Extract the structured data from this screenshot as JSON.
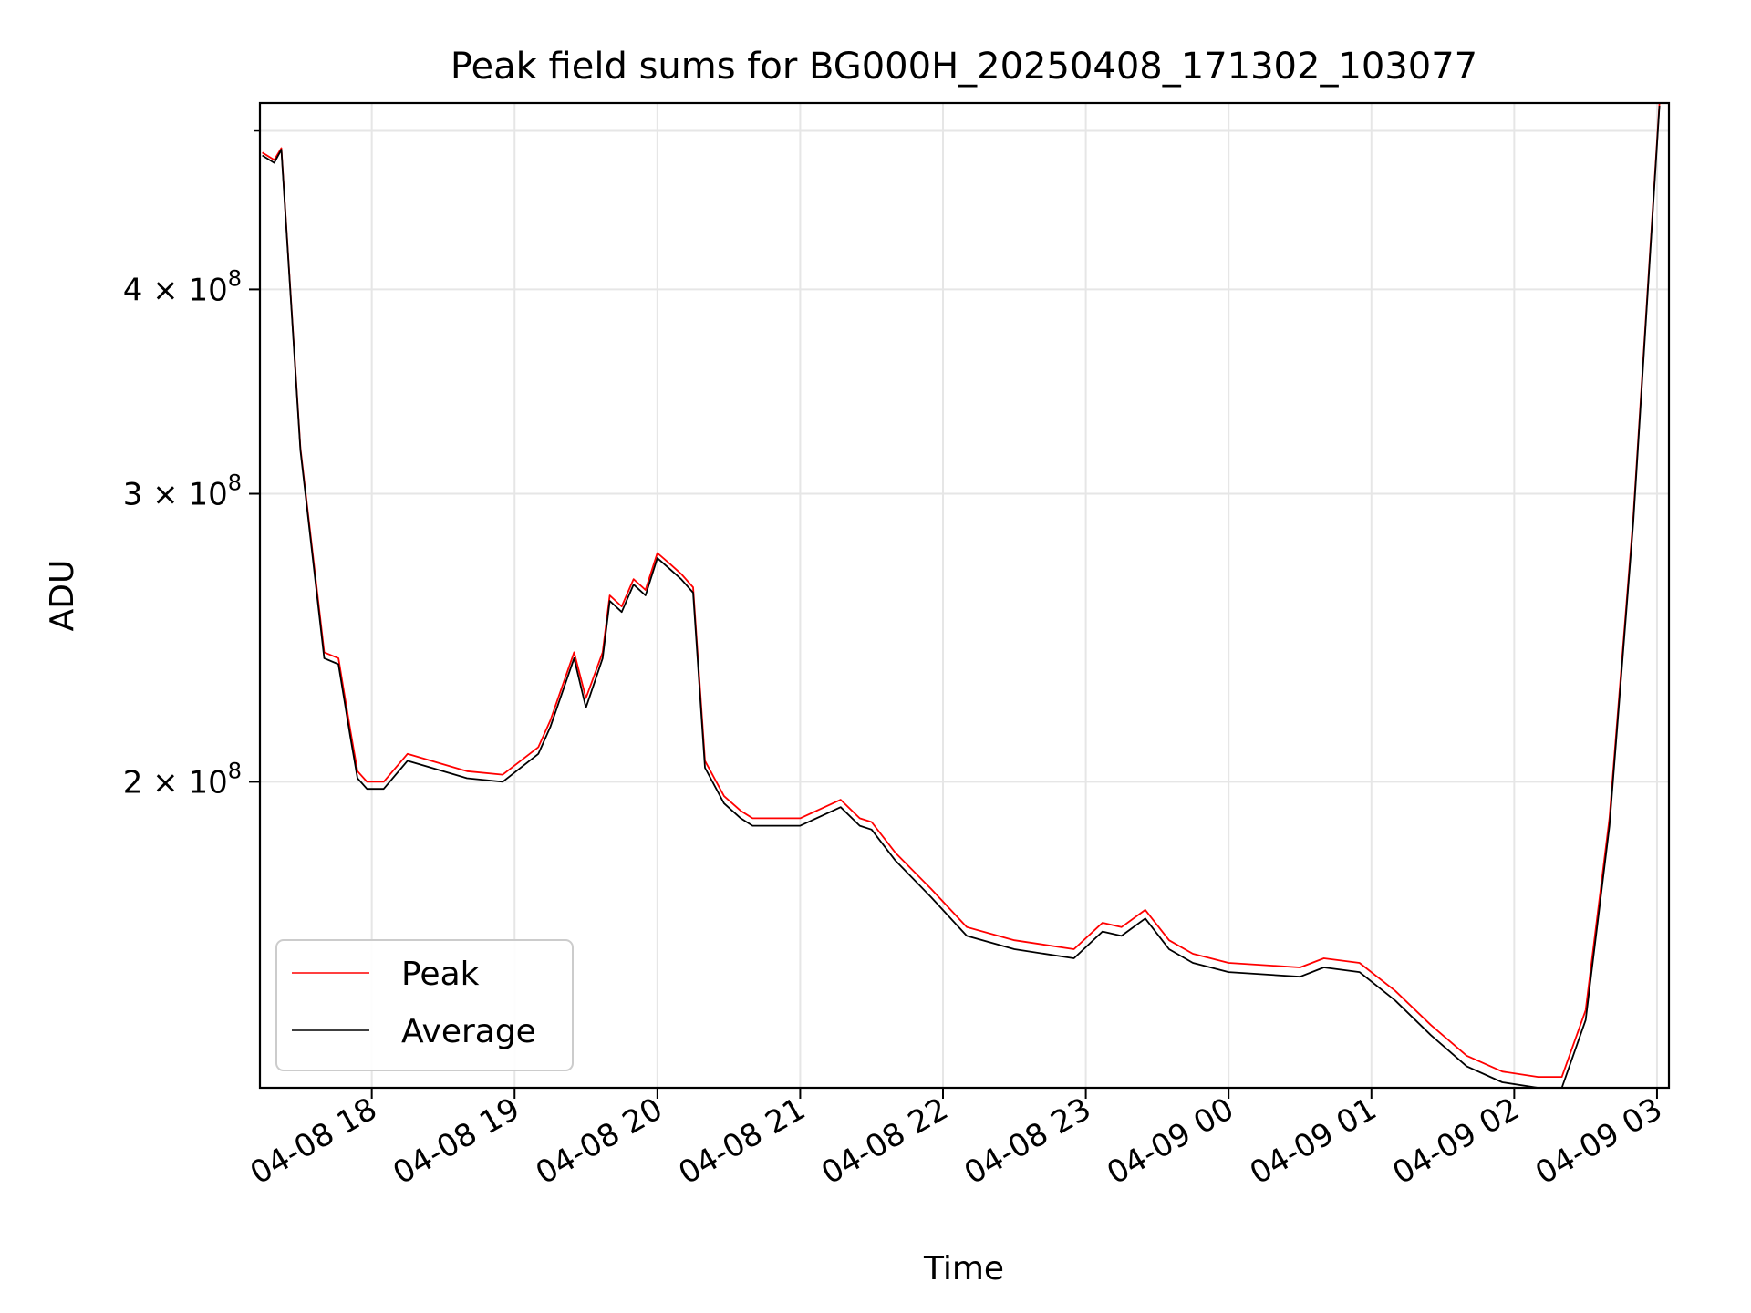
{
  "chart_data": {
    "type": "line",
    "title": "Peak field sums for BG000H_20250408_171302_103077",
    "xlabel": "Time",
    "ylabel": "ADU",
    "yscale": "log",
    "grid": true,
    "legend_position": "lower-left",
    "xlim": [
      "2025-04-08 17:13",
      "2025-04-09 03:05"
    ],
    "ylim": [
      130000000,
      520000000
    ],
    "x_ticks": [
      "04-08 18",
      "04-08 19",
      "04-08 20",
      "04-08 21",
      "04-08 22",
      "04-08 23",
      "04-09 00",
      "04-09 01",
      "04-09 02",
      "04-09 03"
    ],
    "y_ticks": [
      {
        "value": 200000000,
        "mantissa": "2",
        "base": "10",
        "exp": "8"
      },
      {
        "value": 300000000,
        "mantissa": "3",
        "base": "10",
        "exp": "8"
      },
      {
        "value": 400000000,
        "mantissa": "4",
        "base": "10",
        "exp": "8"
      }
    ],
    "series": [
      {
        "name": "Peak",
        "color": "#ff0000",
        "x": [
          "2025-04-08 17:14",
          "2025-04-08 17:19",
          "2025-04-08 17:22",
          "2025-04-08 17:30",
          "2025-04-08 17:40",
          "2025-04-08 17:46",
          "2025-04-08 17:51",
          "2025-04-08 17:54",
          "2025-04-08 17:58",
          "2025-04-08 18:05",
          "2025-04-08 18:15",
          "2025-04-08 18:25",
          "2025-04-08 18:40",
          "2025-04-08 18:55",
          "2025-04-08 19:10",
          "2025-04-08 19:15",
          "2025-04-08 19:25",
          "2025-04-08 19:30",
          "2025-04-08 19:37",
          "2025-04-08 19:40",
          "2025-04-08 19:45",
          "2025-04-08 19:50",
          "2025-04-08 19:55",
          "2025-04-08 20:00",
          "2025-04-08 20:05",
          "2025-04-08 20:10",
          "2025-04-08 20:15",
          "2025-04-08 20:20",
          "2025-04-08 20:28",
          "2025-04-08 20:35",
          "2025-04-08 20:40",
          "2025-04-08 21:00",
          "2025-04-08 21:17",
          "2025-04-08 21:25",
          "2025-04-08 21:30",
          "2025-04-08 21:40",
          "2025-04-08 21:55",
          "2025-04-08 22:10",
          "2025-04-08 22:30",
          "2025-04-08 22:55",
          "2025-04-08 23:07",
          "2025-04-08 23:15",
          "2025-04-08 23:25",
          "2025-04-08 23:35",
          "2025-04-08 23:45",
          "2025-04-09 00:00",
          "2025-04-09 00:30",
          "2025-04-09 00:40",
          "2025-04-09 00:55",
          "2025-04-09 01:10",
          "2025-04-09 01:25",
          "2025-04-09 01:40",
          "2025-04-09 01:55",
          "2025-04-09 02:10",
          "2025-04-09 02:20",
          "2025-04-09 02:30",
          "2025-04-09 02:40",
          "2025-04-09 02:50",
          "2025-04-09 03:01"
        ],
        "values": [
          485000000,
          480000000,
          488000000,
          320000000,
          240000000,
          238000000,
          215000000,
          203000000,
          200000000,
          200000000,
          208000000,
          206000000,
          203000000,
          202000000,
          210000000,
          218000000,
          240000000,
          225000000,
          240000000,
          260000000,
          256000000,
          266000000,
          262000000,
          276000000,
          272000000,
          268000000,
          263000000,
          206000000,
          196000000,
          192000000,
          190000000,
          190000000,
          195000000,
          190000000,
          189000000,
          181000000,
          172000000,
          163000000,
          160000000,
          158000000,
          164000000,
          163000000,
          167000000,
          160000000,
          157000000,
          155000000,
          154000000,
          156000000,
          155000000,
          149000000,
          142000000,
          136000000,
          133000000,
          132000000,
          132000000,
          145000000,
          190000000,
          290000000,
          520000000
        ]
      },
      {
        "name": "Average",
        "color": "#000000",
        "x": [
          "2025-04-08 17:14",
          "2025-04-08 17:19",
          "2025-04-08 17:22",
          "2025-04-08 17:30",
          "2025-04-08 17:40",
          "2025-04-08 17:46",
          "2025-04-08 17:51",
          "2025-04-08 17:54",
          "2025-04-08 17:58",
          "2025-04-08 18:05",
          "2025-04-08 18:15",
          "2025-04-08 18:25",
          "2025-04-08 18:40",
          "2025-04-08 18:55",
          "2025-04-08 19:10",
          "2025-04-08 19:15",
          "2025-04-08 19:25",
          "2025-04-08 19:30",
          "2025-04-08 19:37",
          "2025-04-08 19:40",
          "2025-04-08 19:45",
          "2025-04-08 19:50",
          "2025-04-08 19:55",
          "2025-04-08 20:00",
          "2025-04-08 20:05",
          "2025-04-08 20:10",
          "2025-04-08 20:15",
          "2025-04-08 20:20",
          "2025-04-08 20:28",
          "2025-04-08 20:35",
          "2025-04-08 20:40",
          "2025-04-08 21:00",
          "2025-04-08 21:17",
          "2025-04-08 21:25",
          "2025-04-08 21:30",
          "2025-04-08 21:40",
          "2025-04-08 21:55",
          "2025-04-08 22:10",
          "2025-04-08 22:30",
          "2025-04-08 22:55",
          "2025-04-08 23:07",
          "2025-04-08 23:15",
          "2025-04-08 23:25",
          "2025-04-08 23:35",
          "2025-04-08 23:45",
          "2025-04-09 00:00",
          "2025-04-09 00:30",
          "2025-04-09 00:40",
          "2025-04-09 00:55",
          "2025-04-09 01:10",
          "2025-04-09 01:25",
          "2025-04-09 01:40",
          "2025-04-09 01:55",
          "2025-04-09 02:10",
          "2025-04-09 02:20",
          "2025-04-09 02:30",
          "2025-04-09 02:40",
          "2025-04-09 02:50",
          "2025-04-09 03:01"
        ],
        "values": [
          483000000,
          478000000,
          487000000,
          319000000,
          238000000,
          236000000,
          213000000,
          201000000,
          198000000,
          198000000,
          206000000,
          204000000,
          201000000,
          200000000,
          208000000,
          216000000,
          238000000,
          222000000,
          238000000,
          258000000,
          254000000,
          264000000,
          260000000,
          274000000,
          270000000,
          266000000,
          261000000,
          204000000,
          194000000,
          190000000,
          188000000,
          188000000,
          193000000,
          188000000,
          187000000,
          179000000,
          170000000,
          161000000,
          158000000,
          156000000,
          162000000,
          161000000,
          165000000,
          158000000,
          155000000,
          153000000,
          152000000,
          154000000,
          153000000,
          147000000,
          140000000,
          134000000,
          131000000,
          130000000,
          130000000,
          143000000,
          188000000,
          288000000,
          518000000
        ]
      }
    ]
  }
}
